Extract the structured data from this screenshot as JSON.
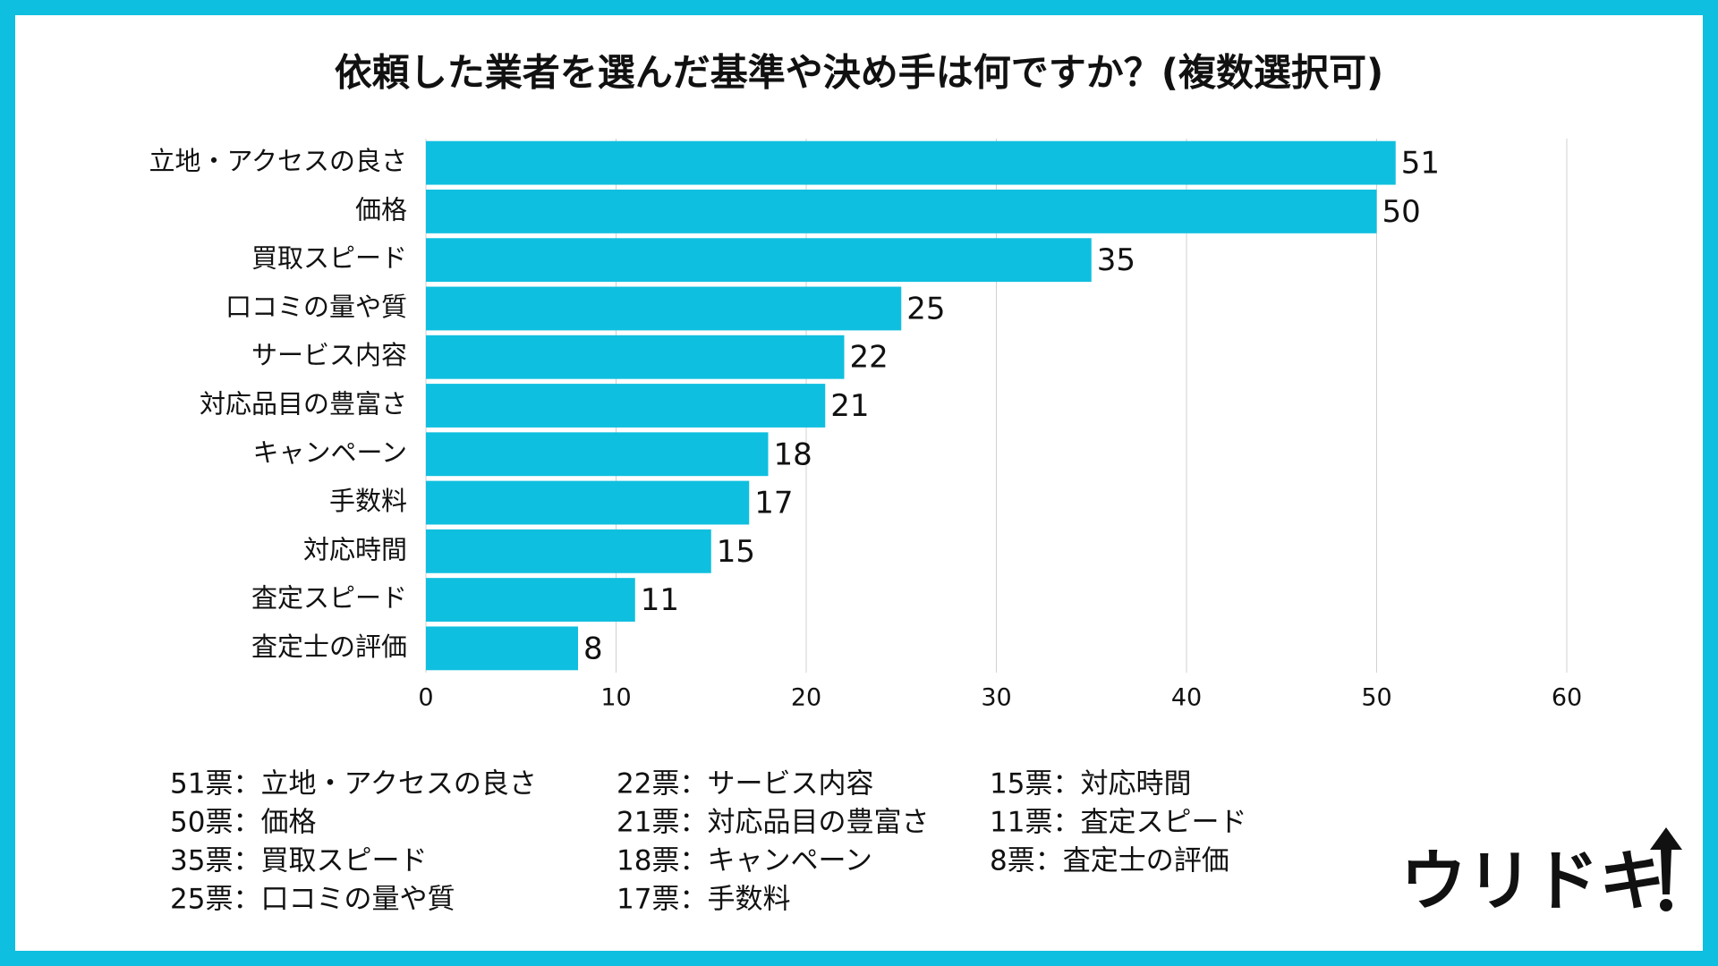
{
  "chart_data": {
    "type": "bar",
    "orientation": "horizontal",
    "title": "依頼した業者を選んだ基準や決め手は何ですか？(複数選択可)",
    "categories": [
      "立地・アクセスの良さ",
      "価格",
      "買取スピード",
      "口コミの量や質",
      "サービス内容",
      "対応品目の豊富さ",
      "キャンペーン",
      "手数料",
      "対応時間",
      "査定スピード",
      "査定士の評価"
    ],
    "values": [
      51,
      50,
      35,
      25,
      22,
      21,
      18,
      17,
      15,
      11,
      8
    ],
    "color": "#0fbfdf",
    "xlim": [
      0,
      60
    ],
    "xticks": [
      0,
      10,
      20,
      30,
      40,
      50,
      60
    ],
    "grid": true
  },
  "notes": [
    "51票：立地・アクセスの良さ",
    "50票：価格",
    "35票：買取スピード",
    "25票：口コミの量や質",
    "22票：サービス内容",
    "21票：対応品目の豊富さ",
    "18票：キャンペーン",
    "17票：手数料",
    "15票：対応時間",
    "11票：査定スピード",
    "8票：査定士の評価"
  ],
  "logo": "ウリドキ"
}
